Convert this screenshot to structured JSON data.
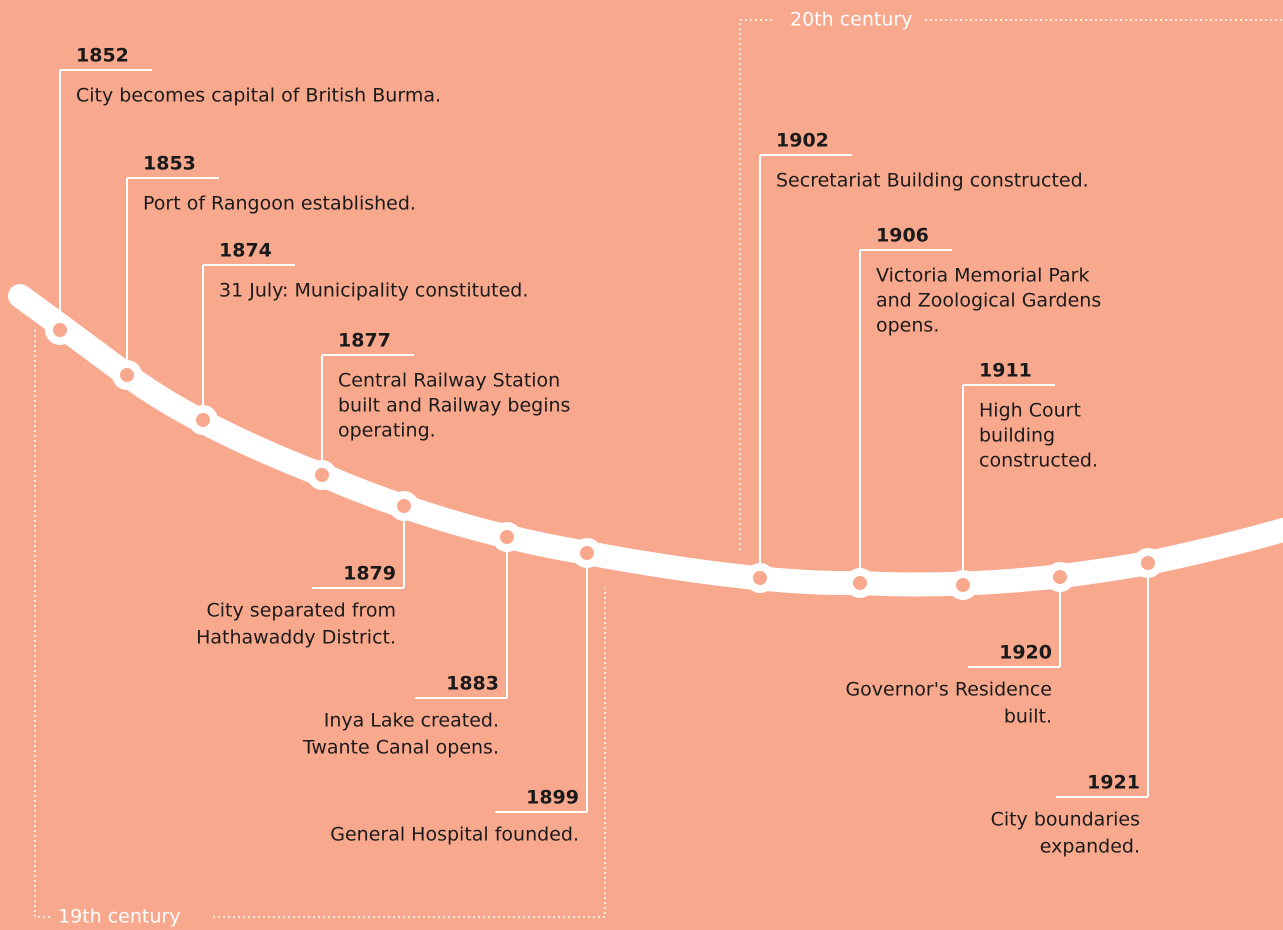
{
  "centuries": [
    "19th century",
    "20th century"
  ],
  "events": [
    {
      "year": "1852",
      "lines": [
        "City becomes capital of British Burma."
      ]
    },
    {
      "year": "1853",
      "lines": [
        "Port of Rangoon established."
      ]
    },
    {
      "year": "1874",
      "lines": [
        "31 July: Municipality constituted."
      ]
    },
    {
      "year": "1877",
      "lines": [
        "Central Railway Station",
        "built and Railway begins",
        "operating."
      ]
    },
    {
      "year": "1879",
      "lines": [
        "City separated from",
        "Hathawaddy District."
      ]
    },
    {
      "year": "1883",
      "lines": [
        "Inya Lake created.",
        "Twante Canal opens."
      ]
    },
    {
      "year": "1899",
      "lines": [
        "General Hospital founded."
      ]
    },
    {
      "year": "1902",
      "lines": [
        "Secretariat Building constructed."
      ]
    },
    {
      "year": "1906",
      "lines": [
        "Victoria Memorial Park",
        "and Zoological Gardens",
        "opens."
      ]
    },
    {
      "year": "1911",
      "lines": [
        "High Court",
        "building",
        "constructed."
      ]
    },
    {
      "year": "1920",
      "lines": [
        "Governor's Residence",
        "built."
      ]
    },
    {
      "year": "1921",
      "lines": [
        "City boundaries",
        "expanded."
      ]
    }
  ]
}
